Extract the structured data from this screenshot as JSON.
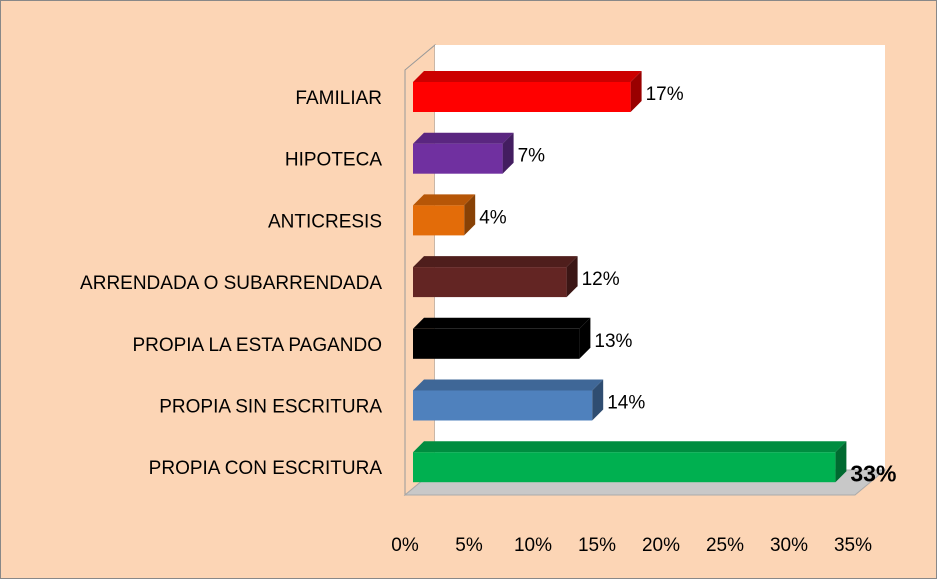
{
  "chart_data": {
    "type": "bar3d_horizontal",
    "categories": [
      "FAMILIAR",
      "HIPOTECA",
      "ANTICRESIS",
      "ARRENDADA O SUBARRENDADA",
      "PROPIA LA ESTA PAGANDO",
      "PROPIA SIN ESCRITURA",
      "PROPIA CON ESCRITURA"
    ],
    "values": [
      17,
      7,
      4,
      12,
      13,
      14,
      33
    ],
    "value_labels": [
      "17%",
      "7%",
      "4%",
      "12%",
      "13%",
      "14%",
      "33%"
    ],
    "colors": [
      "#ff0000",
      "#7030a0",
      "#e36c09",
      "#632523",
      "#000000",
      "#4f81bd",
      "#00b050"
    ],
    "value_label_colors": [
      "#000000",
      "#000000",
      "#000000",
      "#000000",
      "#000000",
      "#000000",
      "#ff0000"
    ],
    "xlim": [
      0,
      35
    ],
    "xticks": [
      {
        "value": 0,
        "label": "0%"
      },
      {
        "value": 5,
        "label": "5%"
      },
      {
        "value": 10,
        "label": "10%"
      },
      {
        "value": 15,
        "label": "15%"
      },
      {
        "value": 20,
        "label": "20%"
      },
      {
        "value": 25,
        "label": "25%"
      },
      {
        "value": 30,
        "label": "30%"
      },
      {
        "value": 35,
        "label": "35%"
      }
    ]
  }
}
